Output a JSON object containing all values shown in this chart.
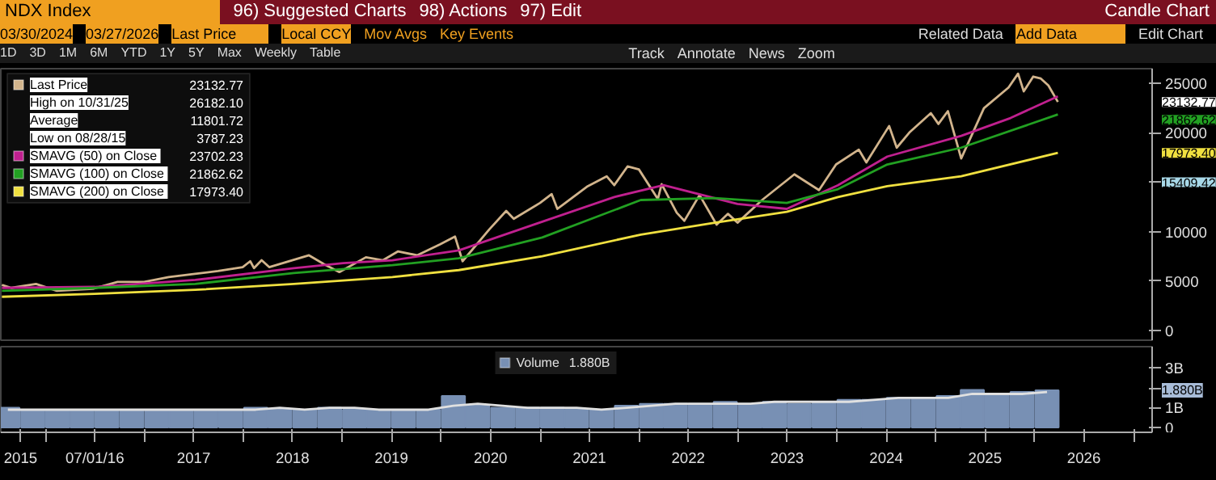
{
  "chart_data": [
    {
      "type": "line",
      "legend": "top left",
      "tick_labels": "y",
      "grid": false,
      "xlim": [
        "2015-07-20",
        "2027-03-10"
      ],
      "ylim": [
        -1000,
        26500
      ],
      "yticks": [
        0,
        5000,
        10000,
        {
          "value": 15000,
          "label": null
        },
        20000,
        25000
      ],
      "annotations": [
        "NDX Index",
        "96) Suggested Charts",
        "98) Actions",
        "97) Edit",
        "Candle Chart",
        "03/30/2024",
        "03/27/2026",
        "Last Price",
        "Local CCY",
        "Mov Avgs",
        "Key Events",
        "1D",
        "3D",
        "1M",
        "6M",
        "YTD",
        "1Y",
        "5Y",
        "Max",
        "Weekly",
        "Table",
        "Track",
        "Annotate",
        "News",
        "Zoom",
        "Related Data",
        "Add Data",
        "Edit Chart",
        "23132.77",
        "High on 10/31/25",
        "26182.10",
        "Average",
        "11801.72",
        "Low on 08/28/15",
        "3787.23",
        "23702.23",
        "21862.62",
        "17973.40",
        "23132.77",
        "21862.62",
        "17973.40",
        "15409.42"
      ],
      "series": [
        {
          "name": "Last Price",
          "color": "#d2b48c",
          "x": [
            "2015-07-24",
            "2015-08-28",
            "2015-11-27",
            "2016-02-12",
            "2016-06-24",
            "2016-09-23",
            "2016-12-30",
            "2017-03-31",
            "2017-06-30",
            "2017-09-29",
            "2017-12-29",
            "2018-01-26",
            "2018-02-09",
            "2018-03-09",
            "2018-04-06",
            "2018-08-31",
            "2018-10-26",
            "2018-12-21",
            "2019-03-29",
            "2019-05-31",
            "2019-07-26",
            "2019-10-04",
            "2019-12-27",
            "2020-02-21",
            "2020-03-20",
            "2020-06-26",
            "2020-08-28",
            "2020-09-25",
            "2020-12-31",
            "2021-02-12",
            "2021-03-05",
            "2021-06-25",
            "2021-09-03",
            "2021-10-01",
            "2021-11-19",
            "2021-12-31",
            "2022-03-11",
            "2022-03-25",
            "2022-05-20",
            "2022-06-17",
            "2022-08-12",
            "2022-10-14",
            "2022-11-25",
            "2022-12-30",
            "2023-03-31",
            "2023-07-28",
            "2023-10-27",
            "2023-12-29",
            "2024-03-22",
            "2024-04-19",
            "2024-07-12",
            "2024-08-09",
            "2024-09-27",
            "2024-12-13",
            "2025-01-10",
            "2025-02-14",
            "2025-04-04",
            "2025-06-27",
            "2025-09-26",
            "2025-10-31",
            "2025-11-21",
            "2025-12-26",
            "2026-01-23",
            "2026-02-20",
            "2026-03-27"
          ],
          "values": [
            4600,
            4300,
            4700,
            4000,
            4200,
            4900,
            4900,
            5400,
            5700,
            6000,
            6400,
            7000,
            6300,
            7100,
            6400,
            7600,
            6700,
            5900,
            7400,
            7100,
            8000,
            7600,
            8700,
            9500,
            7000,
            10200,
            12100,
            11300,
            12900,
            13800,
            12300,
            14600,
            15600,
            14700,
            16600,
            16300,
            13300,
            14800,
            11900,
            11100,
            13700,
            10700,
            11800,
            10900,
            13200,
            15800,
            14200,
            16800,
            18300,
            17000,
            20700,
            18500,
            20100,
            22000,
            20900,
            22200,
            17400,
            22500,
            24600,
            26000,
            24200,
            25700,
            25500,
            24800,
            23132.77
          ]
        },
        {
          "name": "SMAVG (50)  on Close",
          "color": "#c0208f",
          "x": [
            "2015-07-24",
            "2016-07-01",
            "2017-07-07",
            "2018-07-06",
            "2019-01-04",
            "2019-07-05",
            "2020-03-06",
            "2021-01-08",
            "2021-10-01",
            "2022-04-01",
            "2022-12-30",
            "2023-06-30",
            "2024-01-05",
            "2024-07-05",
            "2025-04-04",
            "2025-10-03",
            "2026-03-27"
          ],
          "values": [
            4300,
            4400,
            5100,
            6300,
            6800,
            7100,
            8100,
            11000,
            13500,
            14700,
            12800,
            12300,
            14700,
            17600,
            19700,
            21500,
            23702.23
          ]
        },
        {
          "name": "SMAVG (100)  on Close",
          "color": "#22a022",
          "x": [
            "2015-07-24",
            "2016-07-01",
            "2017-07-07",
            "2018-07-06",
            "2019-07-05",
            "2020-03-06",
            "2021-01-08",
            "2022-01-07",
            "2022-10-07",
            "2023-06-30",
            "2024-01-05",
            "2024-07-05",
            "2025-04-04",
            "2026-03-27"
          ],
          "values": [
            4000,
            4300,
            4700,
            5800,
            6600,
            7300,
            9400,
            13200,
            13400,
            12900,
            14300,
            16800,
            18500,
            21862.62
          ]
        },
        {
          "name": "SMAVG (200)  on Close",
          "color": "#f0e040",
          "x": [
            "2015-07-24",
            "2016-07-01",
            "2017-07-07",
            "2018-07-06",
            "2019-07-05",
            "2020-03-06",
            "2021-01-08",
            "2022-01-07",
            "2022-10-07",
            "2023-06-30",
            "2024-01-05",
            "2024-07-05",
            "2025-04-04",
            "2026-03-27"
          ],
          "values": [
            3400,
            3700,
            4100,
            4700,
            5400,
            6100,
            7500,
            9700,
            10900,
            12000,
            13500,
            14600,
            15600,
            17973.4
          ]
        }
      ]
    },
    {
      "type": "bar",
      "legend": "top",
      "grid": false,
      "xlim": [
        "2015-07-20",
        "2027-03-10"
      ],
      "ylim": [
        -0.25,
        4.1
      ],
      "yticks": [
        0,
        {
          "value": 1,
          "label": "1B"
        },
        {
          "value": 2,
          "label": null
        },
        {
          "value": 3,
          "label": "3B"
        }
      ],
      "xticks": [
        {
          "value": "2015-10-01",
          "label": "2015"
        },
        {
          "value": "2016-01-01",
          "label": null
        },
        {
          "value": "2016-07-01",
          "label": "07/01/16"
        },
        {
          "value": "2017-01-01",
          "label": null
        },
        {
          "value": "2017-07-01",
          "label": "2017"
        },
        {
          "value": "2018-01-01",
          "label": null
        },
        {
          "value": "2018-07-01",
          "label": "2018"
        },
        {
          "value": "2019-01-01",
          "label": null
        },
        {
          "value": "2019-07-01",
          "label": "2019"
        },
        {
          "value": "2020-01-01",
          "label": null
        },
        {
          "value": "2020-07-01",
          "label": "2020"
        },
        {
          "value": "2021-01-01",
          "label": null
        },
        {
          "value": "2021-07-01",
          "label": "2021"
        },
        {
          "value": "2022-01-01",
          "label": null
        },
        {
          "value": "2022-07-01",
          "label": "2022"
        },
        {
          "value": "2023-01-01",
          "label": null
        },
        {
          "value": "2023-07-01",
          "label": "2023"
        },
        {
          "value": "2024-01-01",
          "label": null
        },
        {
          "value": "2024-07-01",
          "label": "2024"
        },
        {
          "value": "2025-01-01",
          "label": null
        },
        {
          "value": "2025-07-01",
          "label": "2025"
        },
        {
          "value": "2026-01-01",
          "label": null
        },
        {
          "value": "2026-07-01",
          "label": "2026"
        },
        {
          "value": "2027-01-01",
          "label": null
        }
      ],
      "annotations": [
        "1.880B",
        "1.880B"
      ],
      "x": [
        "2015-08-15",
        "2015-11-15",
        "2016-02-15",
        "2016-05-15",
        "2016-08-15",
        "2016-11-15",
        "2017-02-15",
        "2017-05-15",
        "2017-08-15",
        "2017-11-15",
        "2018-02-15",
        "2018-05-15",
        "2018-08-15",
        "2018-11-15",
        "2019-02-15",
        "2019-05-15",
        "2019-08-15",
        "2019-11-15",
        "2020-02-15",
        "2020-05-15",
        "2020-08-15",
        "2020-11-15",
        "2021-02-15",
        "2021-05-15",
        "2021-08-15",
        "2021-11-15",
        "2022-02-15",
        "2022-05-15",
        "2022-08-15",
        "2022-11-15",
        "2023-02-15",
        "2023-05-15",
        "2023-08-15",
        "2023-11-15",
        "2024-02-15",
        "2024-05-15",
        "2024-08-15",
        "2024-11-15",
        "2025-02-15",
        "2025-05-15",
        "2025-08-15",
        "2025-11-15",
        "2026-02-15"
      ],
      "series": [
        {
          "name": "Volume",
          "color": "#7890b4",
          "values": [
            1.0,
            0.9,
            0.9,
            0.9,
            0.9,
            0.9,
            0.9,
            0.9,
            0.9,
            0.9,
            1.0,
            0.9,
            0.9,
            1.0,
            0.9,
            0.9,
            0.9,
            0.9,
            1.6,
            1.1,
            1.0,
            1.0,
            1.0,
            0.9,
            0.9,
            1.1,
            1.2,
            1.2,
            1.2,
            1.3,
            1.2,
            1.3,
            1.2,
            1.3,
            1.4,
            1.4,
            1.5,
            1.5,
            1.6,
            1.9,
            1.7,
            1.8,
            1.88
          ]
        },
        {
          "type": "line",
          "color": "#e0e0e0",
          "values": [
            0.9,
            0.9,
            0.9,
            0.9,
            0.9,
            0.9,
            0.9,
            0.9,
            0.9,
            0.9,
            0.9,
            1.0,
            0.9,
            1.0,
            1.0,
            0.9,
            0.9,
            0.9,
            1.1,
            1.2,
            1.1,
            1.0,
            1.0,
            1.0,
            0.9,
            1.0,
            1.1,
            1.2,
            1.2,
            1.2,
            1.2,
            1.3,
            1.3,
            1.3,
            1.3,
            1.4,
            1.5,
            1.5,
            1.5,
            1.7,
            1.7,
            1.7,
            1.8
          ]
        }
      ]
    }
  ]
}
